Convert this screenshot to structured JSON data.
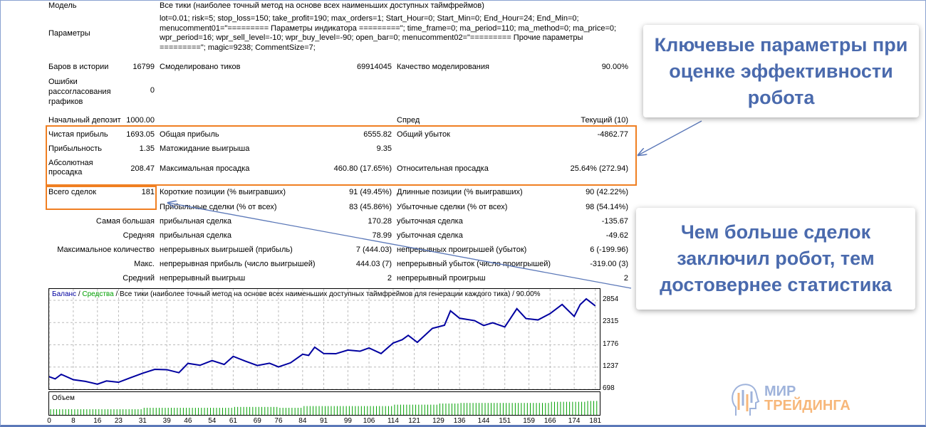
{
  "report": {
    "model_label": "Модель",
    "model_value": "Все тики (наиболее точный метод на основе всех наименьших доступных таймфреймов)",
    "params_label": "Параметры",
    "params_value": "lot=0.01; risk=5; stop_loss=150; take_profit=190; max_orders=1; Start_Hour=0; Start_Min=0; End_Hour=24; End_Min=0; menucomment01=\"========= Параметры индикатора =========\"; time_frame=0; ma_period=110; ma_method=0; ma_price=0; wpr_period=16; wpr_sell_level=-10; wpr_buy_level=-90; open_bar=0; menucomment02=\"========= Прочие параметры =========\"; magic=9238; CommentSize=7;",
    "bars_label": "Баров в истории",
    "bars_value": "16799",
    "ticks_label": "Смоделировано тиков",
    "ticks_value": "69914045",
    "quality_label": "Качество моделирования",
    "quality_value": "90.00%",
    "errors_label": "Ошибки рассогласования графиков",
    "errors_value": "0",
    "deposit_label": "Начальный депозит",
    "deposit_value": "1000.00",
    "spread_label": "Спред",
    "spread_value": "Текущий (10)",
    "net_label": "Чистая прибыль",
    "net_value": "1693.05",
    "gross_profit_label": "Общая прибыль",
    "gross_profit_value": "6555.82",
    "gross_loss_label": "Общий убыток",
    "gross_loss_value": "-4862.77",
    "pf_label": "Прибыльность",
    "pf_value": "1.35",
    "payoff_label": "Матожидание выигрыша",
    "payoff_value": "9.35",
    "abs_dd_label": "Абсолютная просадка",
    "abs_dd_value": "208.47",
    "max_dd_label": "Максимальная просадка",
    "max_dd_value": "460.80 (17.65%)",
    "rel_dd_label": "Относительная просадка",
    "rel_dd_value": "25.64% (272.94)",
    "total_label": "Всего сделок",
    "total_value": "181",
    "short_label": "Короткие позиции (% выигравших)",
    "short_value": "91 (49.45%)",
    "long_label": "Длинные позиции (% выигравших)",
    "long_value": "90 (42.22%)",
    "profit_trades_label": "Прибыльные сделки (% от всех)",
    "profit_trades_value": "83 (45.86%)",
    "loss_trades_label": "Убыточные сделки (% от всех)",
    "loss_trades_value": "98 (54.14%)",
    "rows": [
      {
        "label": "Самая большая",
        "a": "прибыльная сделка",
        "av": "170.28",
        "b": "убыточная сделка",
        "bv": "-135.67"
      },
      {
        "label": "Средняя",
        "a": "прибыльная сделка",
        "av": "78.99",
        "b": "убыточная сделка",
        "bv": "-49.62"
      },
      {
        "label": "Максимальное количество",
        "a": "непрерывных выигрышей (прибыль)",
        "av": "7 (444.03)",
        "b": "непрерывных проигрышей (убыток)",
        "bv": "6 (-199.96)"
      },
      {
        "label": "Макс.",
        "a": "непрерывная прибыль (число выигрышей)",
        "av": "444.03 (7)",
        "b": "непрерывный убыток (число проигрышей)",
        "bv": "-319.00 (3)"
      },
      {
        "label": "Средний",
        "a": "непрерывный выигрыш",
        "av": "2",
        "b": "непрерывный проигрыш",
        "bv": "2"
      }
    ]
  },
  "callouts": {
    "first": "Ключевые параметры при оценке эффективности робота",
    "second": "Чем больше сделок заключил робот, тем достовернее статистика"
  },
  "logo": {
    "line1": "МИР",
    "line2": "ТРЕЙДИНГА"
  },
  "colors": {
    "accent": "#f07f22",
    "callout_text": "#4a6aad",
    "balance": "#0000a0",
    "volume": "#00a000"
  },
  "chart_data": {
    "type": "line",
    "legend_balance": "Баланс",
    "legend_sep": " / ",
    "legend_equity": "Средства",
    "legend_rest": " / Все тики (наиболее точный метод на основе всех наименьших доступных таймфреймов для генерации каждого тика) / 90.00%",
    "volume_label": "Объем",
    "ylim": [
      698,
      2900
    ],
    "yticks": [
      2854,
      2315,
      1776,
      1237,
      698
    ],
    "xticks": [
      0,
      8,
      16,
      23,
      31,
      39,
      46,
      54,
      61,
      69,
      76,
      84,
      91,
      99,
      106,
      114,
      121,
      129,
      136,
      144,
      151,
      159,
      166,
      174,
      181
    ],
    "xlim": [
      0,
      182
    ],
    "x": [
      0,
      2,
      4,
      8,
      12,
      16,
      19,
      23,
      27,
      31,
      35,
      39,
      43,
      46,
      50,
      54,
      58,
      61,
      65,
      69,
      73,
      76,
      80,
      84,
      86,
      88,
      91,
      95,
      99,
      103,
      106,
      110,
      114,
      117,
      119,
      122,
      127,
      131,
      133,
      136,
      141,
      144,
      147,
      151,
      155,
      158,
      162,
      166,
      170,
      174,
      176,
      178,
      181
    ],
    "balance": [
      1004,
      950,
      1060,
      930,
      890,
      822,
      900,
      868,
      980,
      1088,
      1180,
      1173,
      1100,
      1326,
      1280,
      1394,
      1300,
      1496,
      1380,
      1275,
      1330,
      1241,
      1340,
      1547,
      1520,
      1717,
      1564,
      1560,
      1649,
      1620,
      1700,
      1564,
      1819,
      1900,
      2005,
      1836,
      2175,
      2250,
      2600,
      2420,
      2362,
      2243,
      2310,
      2209,
      2651,
      2413,
      2379,
      2532,
      2753,
      2464,
      2753,
      2889,
      2719
    ],
    "volume_steps": [
      [
        0,
        1
      ],
      [
        8,
        1
      ],
      [
        31,
        1.25
      ],
      [
        54,
        1.25
      ],
      [
        61,
        1.4
      ],
      [
        76,
        1.25
      ],
      [
        84,
        1.55
      ],
      [
        106,
        1.55
      ],
      [
        114,
        1.8
      ],
      [
        129,
        2.0
      ],
      [
        136,
        2.1
      ],
      [
        159,
        2.1
      ],
      [
        166,
        2.3
      ],
      [
        178,
        2.45
      ]
    ]
  }
}
